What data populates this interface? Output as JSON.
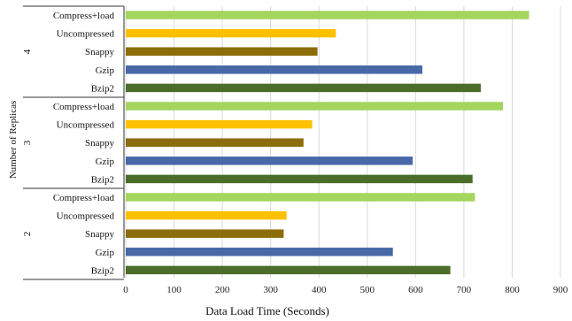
{
  "chart_data": {
    "type": "bar",
    "orientation": "horizontal",
    "xlabel": "Data Load Time (Seconds)",
    "ylabel": "Number of Replicas",
    "xlim": [
      0,
      900
    ],
    "xticks": [
      0,
      100,
      200,
      300,
      400,
      500,
      600,
      700,
      800,
      900
    ],
    "grid": "vertical",
    "groups": [
      {
        "label": "4",
        "bars": [
          {
            "category": "Compress+load",
            "value": 835,
            "color": "#a4d65e"
          },
          {
            "category": "Uncompressed",
            "value": 435,
            "color": "#ffc000"
          },
          {
            "category": "Snappy",
            "value": 397,
            "color": "#8b6d0a"
          },
          {
            "category": "Gzip",
            "value": 614,
            "color": "#4868a8"
          },
          {
            "category": "Bzip2",
            "value": 735,
            "color": "#4a6e2a"
          }
        ]
      },
      {
        "label": "3",
        "bars": [
          {
            "category": "Compress+load",
            "value": 781,
            "color": "#a4d65e"
          },
          {
            "category": "Uncompressed",
            "value": 386,
            "color": "#ffc000"
          },
          {
            "category": "Snappy",
            "value": 368,
            "color": "#8b6d0a"
          },
          {
            "category": "Gzip",
            "value": 594,
            "color": "#4868a8"
          },
          {
            "category": "Bzip2",
            "value": 718,
            "color": "#4a6e2a"
          }
        ]
      },
      {
        "label": "2",
        "bars": [
          {
            "category": "Compress+load",
            "value": 723,
            "color": "#a4d65e"
          },
          {
            "category": "Uncompressed",
            "value": 333,
            "color": "#ffc000"
          },
          {
            "category": "Snappy",
            "value": 327,
            "color": "#8b6d0a"
          },
          {
            "category": "Gzip",
            "value": 553,
            "color": "#4868a8"
          },
          {
            "category": "Bzip2",
            "value": 672,
            "color": "#4a6e2a"
          }
        ]
      }
    ]
  }
}
